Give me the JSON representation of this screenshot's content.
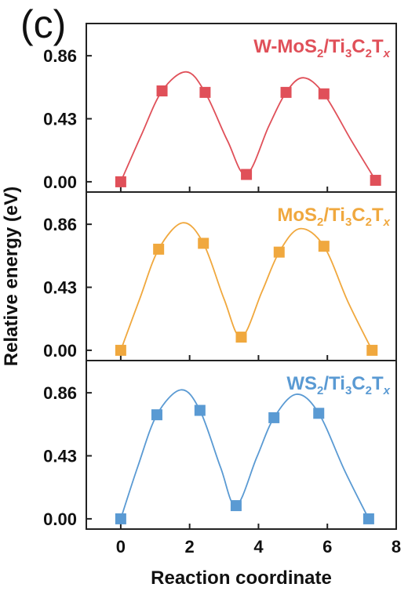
{
  "figure": {
    "panel_letter": "(c)"
  },
  "chart_data": {
    "type": "line",
    "xlabel": "Reaction coordinate",
    "ylabel": "Relative energy (eV)",
    "xlim": [
      -1,
      8
    ],
    "x_ticks": [
      0,
      2,
      4,
      6,
      8
    ],
    "y_ticks": [
      0.0,
      0.43,
      0.86
    ],
    "x_tick_labels": [
      "0",
      "2",
      "4",
      "6",
      "8"
    ],
    "y_tick_labels": [
      "0.00",
      "0.43",
      "0.86"
    ],
    "panels": [
      {
        "color": "#e05059",
        "ylim": [
          -0.07,
          1.08
        ],
        "label": {
          "base1": "W-MoS",
          "sub1": "2",
          "mid1": "/Ti",
          "sub2": "3",
          "mid2": "C",
          "sub3": "2",
          "mid3": "T",
          "sub4": "x"
        },
        "points": [
          {
            "x": 0.0,
            "y": 0.0
          },
          {
            "x": 1.2,
            "y": 0.62
          },
          {
            "x": 2.45,
            "y": 0.61
          },
          {
            "x": 3.65,
            "y": 0.05
          },
          {
            "x": 4.8,
            "y": 0.61
          },
          {
            "x": 5.9,
            "y": 0.6
          },
          {
            "x": 7.4,
            "y": 0.01
          }
        ],
        "curve": [
          {
            "x": 0.0,
            "y": 0.0
          },
          {
            "x": 0.6,
            "y": 0.32
          },
          {
            "x": 1.2,
            "y": 0.62
          },
          {
            "x": 1.9,
            "y": 0.75
          },
          {
            "x": 2.45,
            "y": 0.61
          },
          {
            "x": 3.1,
            "y": 0.28
          },
          {
            "x": 3.65,
            "y": 0.05
          },
          {
            "x": 4.3,
            "y": 0.38
          },
          {
            "x": 4.8,
            "y": 0.61
          },
          {
            "x": 5.3,
            "y": 0.71
          },
          {
            "x": 5.9,
            "y": 0.6
          },
          {
            "x": 6.7,
            "y": 0.28
          },
          {
            "x": 7.4,
            "y": 0.01
          }
        ]
      },
      {
        "color": "#f0a83e",
        "ylim": [
          -0.07,
          1.08
        ],
        "label": {
          "base1": "MoS",
          "sub1": "2",
          "mid1": "/Ti",
          "sub2": "3",
          "mid2": "C",
          "sub3": "2",
          "mid3": "T",
          "sub4": "x"
        },
        "points": [
          {
            "x": 0.0,
            "y": 0.0
          },
          {
            "x": 1.1,
            "y": 0.69
          },
          {
            "x": 2.4,
            "y": 0.73
          },
          {
            "x": 3.5,
            "y": 0.09
          },
          {
            "x": 4.6,
            "y": 0.67
          },
          {
            "x": 5.9,
            "y": 0.71
          },
          {
            "x": 7.3,
            "y": 0.0
          }
        ],
        "curve": [
          {
            "x": 0.0,
            "y": 0.0
          },
          {
            "x": 0.55,
            "y": 0.35
          },
          {
            "x": 1.1,
            "y": 0.69
          },
          {
            "x": 1.8,
            "y": 0.87
          },
          {
            "x": 2.4,
            "y": 0.73
          },
          {
            "x": 3.0,
            "y": 0.35
          },
          {
            "x": 3.5,
            "y": 0.09
          },
          {
            "x": 4.1,
            "y": 0.4
          },
          {
            "x": 4.6,
            "y": 0.67
          },
          {
            "x": 5.2,
            "y": 0.83
          },
          {
            "x": 5.9,
            "y": 0.71
          },
          {
            "x": 6.6,
            "y": 0.33
          },
          {
            "x": 7.3,
            "y": 0.0
          }
        ]
      },
      {
        "color": "#5a9ad3",
        "ylim": [
          -0.07,
          1.08
        ],
        "label": {
          "base1": "WS",
          "sub1": "2",
          "mid1": "/Ti",
          "sub2": "3",
          "mid2": "C",
          "sub3": "2",
          "mid3": "T",
          "sub4": "x"
        },
        "points": [
          {
            "x": 0.0,
            "y": 0.0
          },
          {
            "x": 1.05,
            "y": 0.71
          },
          {
            "x": 2.3,
            "y": 0.74
          },
          {
            "x": 3.35,
            "y": 0.09
          },
          {
            "x": 4.45,
            "y": 0.69
          },
          {
            "x": 5.75,
            "y": 0.72
          },
          {
            "x": 7.2,
            "y": 0.0
          }
        ],
        "curve": [
          {
            "x": 0.0,
            "y": 0.0
          },
          {
            "x": 0.5,
            "y": 0.36
          },
          {
            "x": 1.05,
            "y": 0.71
          },
          {
            "x": 1.75,
            "y": 0.88
          },
          {
            "x": 2.3,
            "y": 0.74
          },
          {
            "x": 2.9,
            "y": 0.35
          },
          {
            "x": 3.35,
            "y": 0.09
          },
          {
            "x": 3.95,
            "y": 0.42
          },
          {
            "x": 4.45,
            "y": 0.69
          },
          {
            "x": 5.1,
            "y": 0.85
          },
          {
            "x": 5.75,
            "y": 0.72
          },
          {
            "x": 6.5,
            "y": 0.33
          },
          {
            "x": 7.2,
            "y": 0.0
          }
        ]
      }
    ]
  }
}
